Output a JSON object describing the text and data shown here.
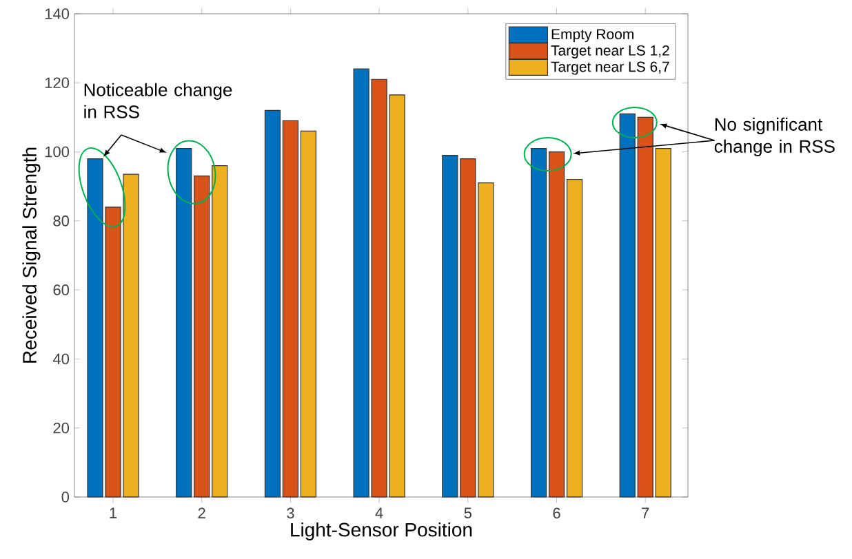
{
  "chart_data": {
    "type": "bar",
    "xlabel": "Light-Sensor Position",
    "ylabel": "Received Signal Strength",
    "categories": [
      "1",
      "2",
      "3",
      "4",
      "5",
      "6",
      "7"
    ],
    "series": [
      {
        "name": "Empty Room",
        "color": "#0072bd",
        "values": [
          98,
          101,
          112,
          124,
          99,
          101,
          111
        ]
      },
      {
        "name": "Target near LS 1,2",
        "color": "#d95319",
        "values": [
          84,
          93,
          109,
          121,
          98,
          100,
          110
        ]
      },
      {
        "name": "Target near LS 6,7",
        "color": "#edb120",
        "values": [
          93.5,
          96,
          106,
          116.5,
          91,
          92,
          101
        ]
      }
    ],
    "ylim": [
      0,
      140
    ],
    "yticks": [
      0,
      20,
      40,
      60,
      80,
      100,
      120,
      140
    ],
    "legend": "top right",
    "annotations": [
      "Noticeable change in RSS",
      "No significant change in RSS"
    ]
  }
}
